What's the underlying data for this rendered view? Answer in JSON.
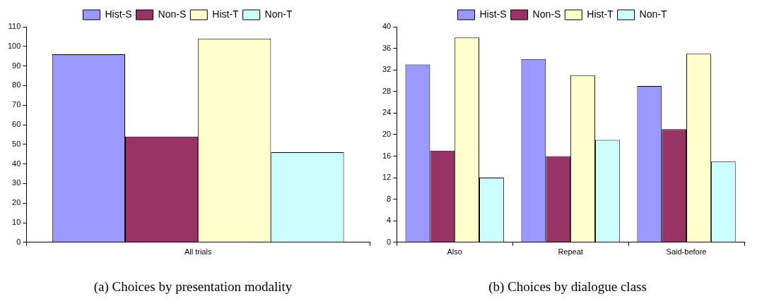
{
  "chart_data": [
    {
      "type": "bar",
      "title": "(a) Choices by presentation modality",
      "categories": [
        "All trials"
      ],
      "series": [
        {
          "name": "Hist-S",
          "color": "#9999ff",
          "values": [
            96
          ]
        },
        {
          "name": "Non-S",
          "color": "#993366",
          "values": [
            54
          ]
        },
        {
          "name": "Hist-T",
          "color": "#ffffcc",
          "values": [
            104
          ]
        },
        {
          "name": "Non-T",
          "color": "#ccffff",
          "values": [
            46
          ]
        }
      ],
      "ylim": [
        0,
        110
      ],
      "yticks": [
        0,
        10,
        20,
        30,
        40,
        50,
        60,
        70,
        80,
        90,
        100,
        110
      ],
      "grid": false,
      "legend": "top"
    },
    {
      "type": "bar",
      "title": "(b) Choices by dialogue class",
      "categories": [
        "Also",
        "Repeat",
        "Said-before"
      ],
      "series": [
        {
          "name": "Hist-S",
          "color": "#9999ff",
          "values": [
            33,
            34,
            29
          ]
        },
        {
          "name": "Non-S",
          "color": "#993366",
          "values": [
            17,
            16,
            21
          ]
        },
        {
          "name": "Hist-T",
          "color": "#ffffcc",
          "values": [
            38,
            31,
            35
          ]
        },
        {
          "name": "Non-T",
          "color": "#ccffff",
          "values": [
            12,
            19,
            15
          ]
        }
      ],
      "ylim": [
        0,
        40
      ],
      "yticks": [
        0,
        4,
        8,
        12,
        16,
        20,
        24,
        28,
        32,
        36,
        40
      ],
      "grid": false,
      "legend": "top"
    }
  ]
}
